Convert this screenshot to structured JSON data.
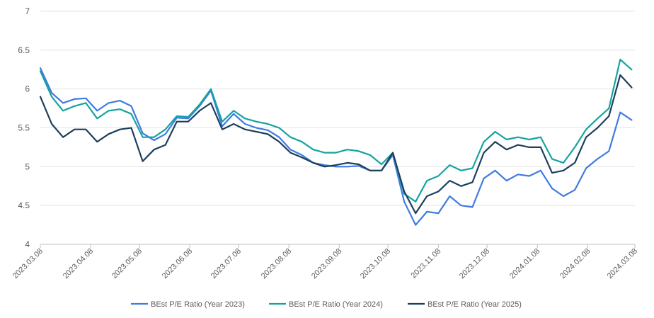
{
  "chart_data": {
    "type": "line",
    "title": "",
    "xlabel": "",
    "ylabel": "",
    "ylim": [
      4,
      7
    ],
    "yticks": [
      "4",
      "4.5",
      "5",
      "5.5",
      "6",
      "6.5",
      "7"
    ],
    "grid": "horizontal",
    "legend_position": "bottom",
    "x_tick_labels": [
      "2023.03.08",
      "2023.04.08",
      "2023.05.08",
      "2023.06.08",
      "2023.07.08",
      "2023.08.08",
      "2023.09.08",
      "2023.10.08",
      "2023.11.08",
      "2023.12.08",
      "2024.01.08",
      "2024.02.08",
      "2024.03.08"
    ],
    "x": [
      "2023.03.08",
      "2023.03.15",
      "2023.03.22",
      "2023.03.29",
      "2023.04.05",
      "2023.04.12",
      "2023.04.19",
      "2023.04.26",
      "2023.05.03",
      "2023.05.10",
      "2023.05.17",
      "2023.05.24",
      "2023.05.31",
      "2023.06.07",
      "2023.06.14",
      "2023.06.21",
      "2023.06.28",
      "2023.07.05",
      "2023.07.12",
      "2023.07.19",
      "2023.07.26",
      "2023.08.02",
      "2023.08.09",
      "2023.08.16",
      "2023.08.23",
      "2023.08.30",
      "2023.09.06",
      "2023.09.13",
      "2023.09.20",
      "2023.09.27",
      "2023.10.04",
      "2023.10.11",
      "2023.10.18",
      "2023.10.25",
      "2023.11.01",
      "2023.11.08",
      "2023.11.15",
      "2023.11.22",
      "2023.11.29",
      "2023.12.06",
      "2023.12.13",
      "2023.12.20",
      "2023.12.27",
      "2024.01.03",
      "2024.01.10",
      "2024.01.17",
      "2024.01.24",
      "2024.01.31",
      "2024.02.07",
      "2024.02.14",
      "2024.02.21",
      "2024.02.28",
      "2024.03.06"
    ],
    "series": [
      {
        "name": "BEst P/E Ratio (Year 2023)",
        "color": "#3f7be0",
        "values": [
          6.27,
          5.95,
          5.82,
          5.87,
          5.88,
          5.72,
          5.82,
          5.85,
          5.78,
          5.43,
          5.34,
          5.42,
          5.63,
          5.62,
          5.78,
          5.98,
          5.52,
          5.68,
          5.55,
          5.5,
          5.47,
          5.38,
          5.22,
          5.15,
          5.05,
          5.02,
          5.0,
          5.0,
          5.01,
          4.95,
          4.95,
          5.15,
          4.55,
          4.25,
          4.42,
          4.4,
          4.62,
          4.5,
          4.48,
          4.85,
          4.95,
          4.82,
          4.9,
          4.88,
          4.95,
          4.72,
          4.62,
          4.7,
          4.98,
          5.1,
          5.2,
          5.7,
          5.6
        ]
      },
      {
        "name": "BEst P/E Ratio (Year 2024)",
        "color": "#16a3a0",
        "values": [
          6.23,
          5.9,
          5.72,
          5.78,
          5.82,
          5.62,
          5.72,
          5.74,
          5.68,
          5.38,
          5.38,
          5.48,
          5.65,
          5.64,
          5.8,
          6.0,
          5.58,
          5.72,
          5.62,
          5.58,
          5.55,
          5.5,
          5.38,
          5.32,
          5.22,
          5.18,
          5.18,
          5.22,
          5.2,
          5.15,
          5.03,
          5.18,
          4.65,
          4.55,
          4.82,
          4.88,
          5.02,
          4.95,
          4.98,
          5.32,
          5.45,
          5.35,
          5.38,
          5.35,
          5.38,
          5.1,
          5.05,
          5.25,
          5.48,
          5.62,
          5.75,
          6.38,
          6.25
        ]
      },
      {
        "name": "BEst P/E Ratio (Year 2025)",
        "color": "#1d3f5c",
        "values": [
          5.9,
          5.55,
          5.38,
          5.48,
          5.48,
          5.32,
          5.42,
          5.48,
          5.5,
          5.07,
          5.22,
          5.28,
          5.58,
          5.58,
          5.72,
          5.82,
          5.48,
          5.55,
          5.48,
          5.45,
          5.42,
          5.32,
          5.18,
          5.12,
          5.05,
          5.0,
          5.02,
          5.05,
          5.03,
          4.95,
          4.95,
          5.18,
          4.68,
          4.4,
          4.62,
          4.68,
          4.82,
          4.75,
          4.8,
          5.18,
          5.32,
          5.22,
          5.28,
          5.25,
          5.25,
          4.92,
          4.95,
          5.05,
          5.38,
          5.5,
          5.65,
          6.18,
          6.02
        ]
      }
    ]
  }
}
